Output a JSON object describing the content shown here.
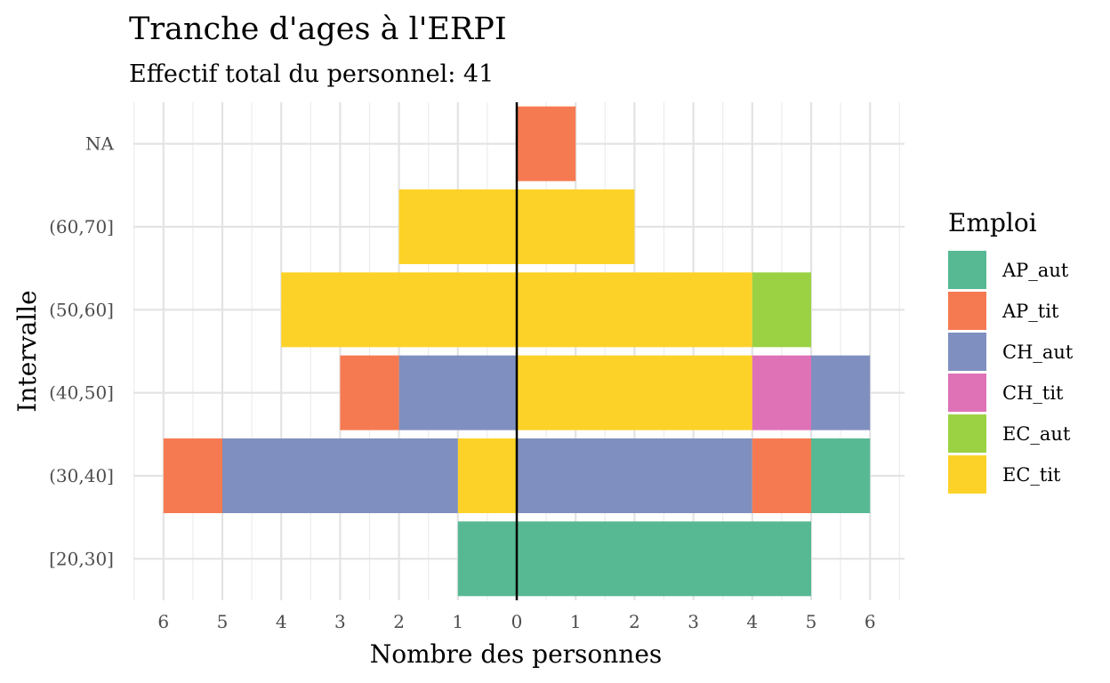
{
  "chart_data": {
    "type": "bar",
    "orientation": "horizontal",
    "layout": "population-pyramid",
    "title": "Tranche d'ages à l'ERPI",
    "subtitle": "Effectif total du personnel: 41",
    "xlabel": "Nombre des personnes",
    "ylabel": "Intervalle",
    "categories": [
      "[20,30]",
      "(30,40]",
      "(40,50]",
      "(50,60]",
      "(60,70]",
      "NA"
    ],
    "x_tick_values": [
      -6,
      -5,
      -4,
      -3,
      -2,
      -1,
      0,
      1,
      2,
      3,
      4,
      5,
      6
    ],
    "x_tick_labels": [
      "6",
      "5",
      "4",
      "3",
      "2",
      "1",
      "0",
      "1",
      "2",
      "3",
      "4",
      "5",
      "6"
    ],
    "xlim": [
      -6.5,
      6.5
    ],
    "grid": true,
    "legend": {
      "title": "Emploi",
      "position": "right",
      "entries": [
        "AP_aut",
        "AP_tit",
        "CH_aut",
        "CH_tit",
        "EC_aut",
        "EC_tit"
      ]
    },
    "colors": {
      "AP_aut": "#57B993",
      "AP_tit": "#F67A51",
      "CH_aut": "#7F8FBF",
      "CH_tit": "#DF71B6",
      "EC_aut": "#9AD243",
      "EC_tit": "#FDD228"
    },
    "left_side": {
      "description_hint": "bars extending left of zero",
      "stacks": {
        "[20,30]": [
          {
            "emploi": "AP_aut",
            "value": 1
          }
        ],
        "(30,40]": [
          {
            "emploi": "EC_tit",
            "value": 1
          },
          {
            "emploi": "CH_aut",
            "value": 4
          },
          {
            "emploi": "AP_tit",
            "value": 1
          }
        ],
        "(40,50]": [
          {
            "emploi": "CH_aut",
            "value": 2
          },
          {
            "emploi": "AP_tit",
            "value": 1
          }
        ],
        "(50,60]": [
          {
            "emploi": "EC_tit",
            "value": 4
          }
        ],
        "(60,70]": [
          {
            "emploi": "EC_tit",
            "value": 2
          }
        ],
        "NA": []
      }
    },
    "right_side": {
      "stacks": {
        "[20,30]": [
          {
            "emploi": "AP_aut",
            "value": 5
          }
        ],
        "(30,40]": [
          {
            "emploi": "CH_aut",
            "value": 4
          },
          {
            "emploi": "AP_tit",
            "value": 1
          },
          {
            "emploi": "AP_aut",
            "value": 1
          }
        ],
        "(40,50]": [
          {
            "emploi": "EC_tit",
            "value": 4
          },
          {
            "emploi": "CH_tit",
            "value": 1
          },
          {
            "emploi": "CH_aut",
            "value": 1
          }
        ],
        "(50,60]": [
          {
            "emploi": "EC_tit",
            "value": 4
          },
          {
            "emploi": "EC_aut",
            "value": 1
          }
        ],
        "(60,70]": [
          {
            "emploi": "EC_tit",
            "value": 2
          }
        ],
        "NA": [
          {
            "emploi": "AP_tit",
            "value": 1
          }
        ]
      }
    }
  }
}
